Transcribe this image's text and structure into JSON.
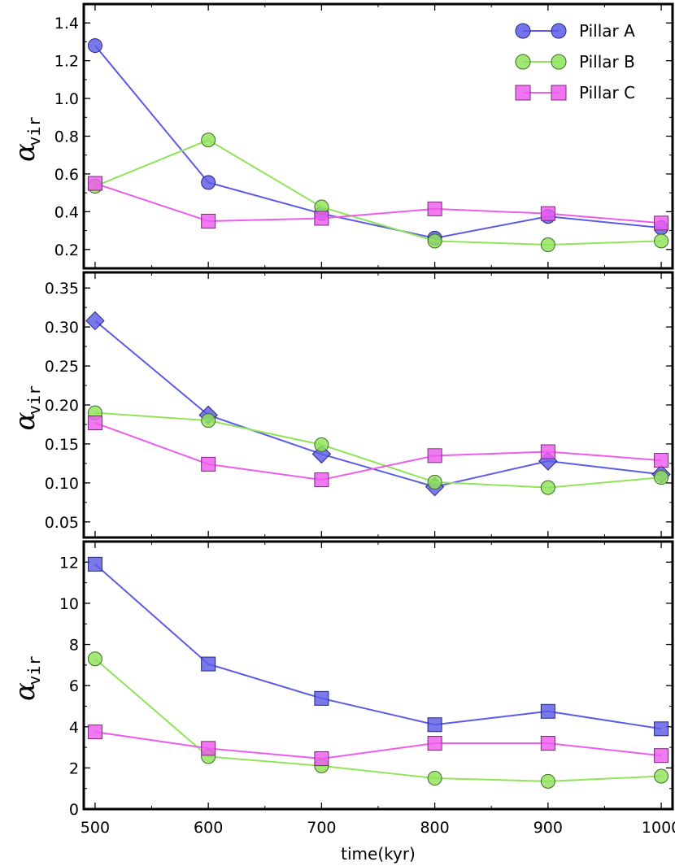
{
  "figure": {
    "xlabel": "time(kyr)",
    "x_ticks": [
      "500",
      "600",
      "700",
      "800",
      "900",
      "1000"
    ],
    "ylabel_symbol": "α",
    "ylabel_subscript": "vir",
    "colors": {
      "Pillar A": "#5b5be8",
      "Pillar B": "#90e35a",
      "Pillar C": "#ee5cee"
    }
  },
  "legend": {
    "entries": [
      {
        "label": "Pillar A",
        "marker": "circle",
        "color": "#5b5be8"
      },
      {
        "label": "Pillar B",
        "marker": "circle",
        "color": "#90e35a"
      },
      {
        "label": "Pillar C",
        "marker": "square",
        "color": "#ee5cee"
      }
    ]
  },
  "chart_data": [
    {
      "type": "line",
      "panel": "top",
      "x": [
        500,
        600,
        700,
        800,
        900,
        1000
      ],
      "xlim": [
        490,
        1010
      ],
      "ylim": [
        0.1,
        1.5
      ],
      "yticks": [
        0.2,
        0.4,
        0.6,
        0.8,
        1.0,
        1.2,
        1.4
      ],
      "ytick_labels": [
        "0.2",
        "0.4",
        "0.6",
        "0.8",
        "1.0",
        "1.2",
        "1.4"
      ],
      "ylabel": "α_vir",
      "series": [
        {
          "name": "Pillar A",
          "marker": "circle",
          "color": "#5b5be8",
          "values": [
            1.28,
            0.555,
            0.39,
            0.26,
            0.375,
            0.315
          ]
        },
        {
          "name": "Pillar B",
          "marker": "circle",
          "color": "#90e35a",
          "values": [
            0.535,
            0.78,
            0.425,
            0.245,
            0.225,
            0.245
          ]
        },
        {
          "name": "Pillar C",
          "marker": "square",
          "color": "#ee5cee",
          "values": [
            0.55,
            0.35,
            0.365,
            0.415,
            0.39,
            0.34
          ]
        }
      ]
    },
    {
      "type": "line",
      "panel": "middle",
      "x": [
        500,
        600,
        700,
        800,
        900,
        1000
      ],
      "xlim": [
        490,
        1010
      ],
      "ylim": [
        0.03,
        0.37
      ],
      "yticks": [
        0.05,
        0.1,
        0.15,
        0.2,
        0.25,
        0.3,
        0.35
      ],
      "ytick_labels": [
        "0.05",
        "0.10",
        "0.15",
        "0.20",
        "0.25",
        "0.30",
        "0.35"
      ],
      "ylabel": "α_vir",
      "series": [
        {
          "name": "Pillar A",
          "marker": "diamond",
          "color": "#5b5be8",
          "values": [
            0.308,
            0.187,
            0.137,
            0.095,
            0.128,
            0.111
          ]
        },
        {
          "name": "Pillar B",
          "marker": "circle",
          "color": "#90e35a",
          "values": [
            0.19,
            0.18,
            0.149,
            0.101,
            0.094,
            0.107
          ]
        },
        {
          "name": "Pillar C",
          "marker": "square",
          "color": "#ee5cee",
          "values": [
            0.177,
            0.124,
            0.104,
            0.135,
            0.14,
            0.129
          ]
        }
      ]
    },
    {
      "type": "line",
      "panel": "bottom",
      "x": [
        500,
        600,
        700,
        800,
        900,
        1000
      ],
      "xlim": [
        490,
        1010
      ],
      "ylim": [
        0,
        13
      ],
      "yticks": [
        0,
        2,
        4,
        6,
        8,
        10,
        12
      ],
      "ytick_labels": [
        "0",
        "2",
        "4",
        "6",
        "8",
        "10",
        "12"
      ],
      "ylabel": "α_vir",
      "series": [
        {
          "name": "Pillar A",
          "marker": "square",
          "color": "#5b5be8",
          "values": [
            11.9,
            7.05,
            5.38,
            4.1,
            4.75,
            3.9
          ]
        },
        {
          "name": "Pillar B",
          "marker": "circle",
          "color": "#90e35a",
          "values": [
            7.3,
            2.55,
            2.1,
            1.5,
            1.35,
            1.6
          ]
        },
        {
          "name": "Pillar C",
          "marker": "square",
          "color": "#ee5cee",
          "values": [
            3.75,
            2.95,
            2.45,
            3.2,
            3.2,
            2.6
          ]
        }
      ]
    }
  ]
}
